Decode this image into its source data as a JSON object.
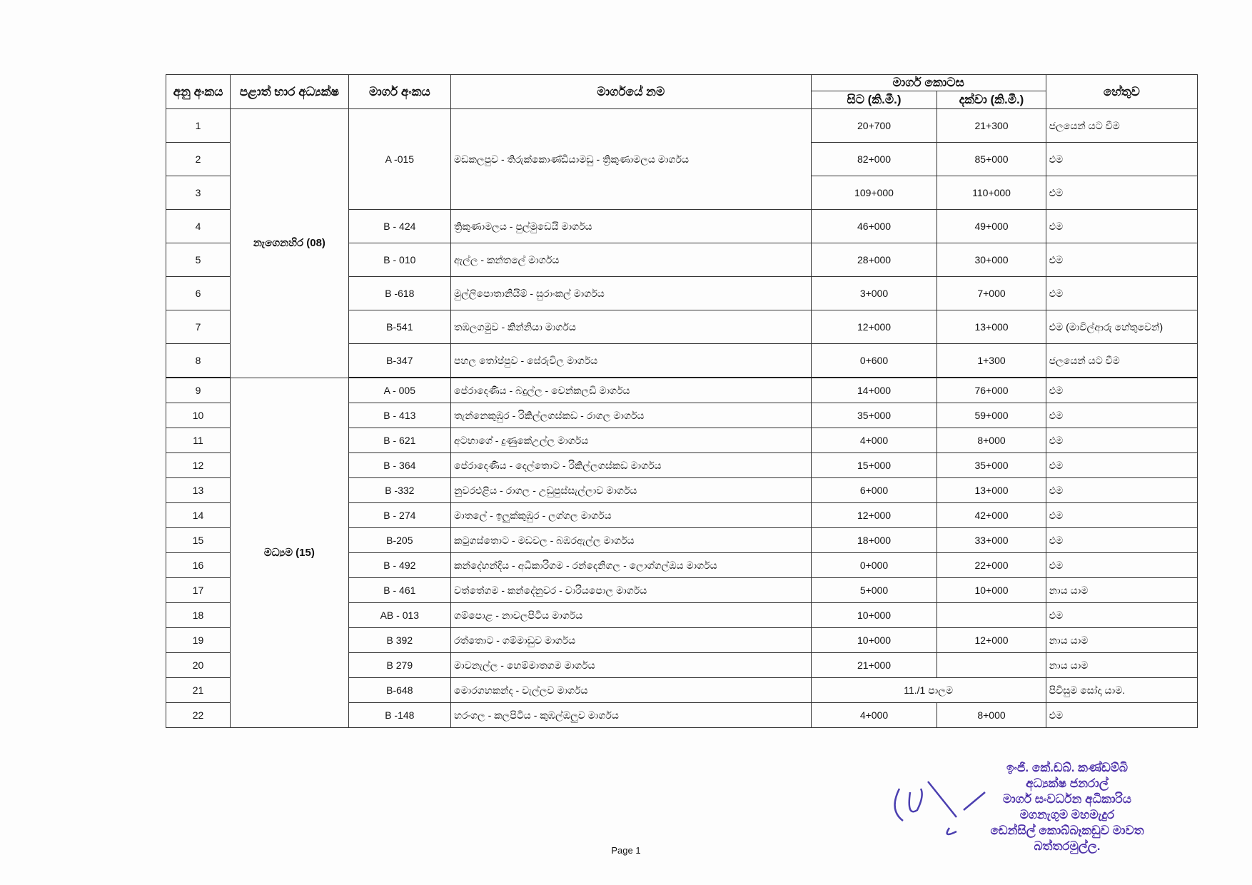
{
  "header": {
    "serial": "අනු අංකය",
    "office": "පළාත් භාර අධ්‍යක්ෂ",
    "road_code": "මාර්ග අංකය",
    "road_name": "මාර්ගයේ නම",
    "section": "මාර්ග කොටස",
    "from": "සිට (කි.මී.)",
    "to": "දක්වා (කි.මී.)",
    "reason": "හේතුව"
  },
  "offices": [
    "නැගෙනහිර (08)",
    "මධ්‍යම (15)"
  ],
  "rows": [
    {
      "no": "1",
      "code": "A -015",
      "name": "මඩකලපුව - තිරුක්කොණ්ඩියාමඩු - ත්‍රිකුණාමලය මාර්ගය",
      "from": "20+700",
      "to": "21+300",
      "reason": "ජලයෙන් යට වීම"
    },
    {
      "no": "2",
      "from": "82+000",
      "to": "85+000",
      "reason": "එම"
    },
    {
      "no": "3",
      "from": "109+000",
      "to": "110+000",
      "reason": "එම"
    },
    {
      "no": "4",
      "code": "B - 424",
      "name": "ත්‍රිකුණාමලය - පුල්මුඩෙයි මාර්ගය",
      "from": "46+000",
      "to": "49+000",
      "reason": "එම"
    },
    {
      "no": "5",
      "code": "B - 010",
      "name": "ඇල්ල - කන්තලේ මාර්ගය",
      "from": "28+000",
      "to": "30+000",
      "reason": "එම"
    },
    {
      "no": "6",
      "code": "B -618",
      "name": "මුල්ලිපොතානියිම් - සුරාංකල් මාර්ගය",
      "from": "3+000",
      "to": "7+000",
      "reason": "එම"
    },
    {
      "no": "7",
      "code": "B-541",
      "name": "තඹලගමුව - කින්නියා මාර්ගය",
      "from": "12+000",
      "to": "13+000",
      "reason": "එම (මාවිල්ආරු හේතුවෙන්)"
    },
    {
      "no": "8",
      "code": "B-347",
      "name": "පහල තෝප්පුව - සේරුවිල මාර්ගය",
      "from": "0+600",
      "to": "1+300",
      "reason": "ජලයෙන් යට වීම"
    },
    {
      "no": "9",
      "code": "A - 005",
      "name": "පේරාදෙණිය - බදුල්ල - චෙන්කලඩි මාර්ගය",
      "from": "14+000",
      "to": "76+000",
      "reason": "එම"
    },
    {
      "no": "10",
      "code": "B - 413",
      "name": "තැන්නෙකුඹුර - රිකිල්ලගස්කඩ - රාගල මාර්ගය",
      "from": "35+000",
      "to": "59+000",
      "reason": "එම"
    },
    {
      "no": "11",
      "code": "B - 621",
      "name": "අටභාගේ - දුණුකේඋල්ල මාර්ගය",
      "from": "4+000",
      "to": "8+000",
      "reason": "එම"
    },
    {
      "no": "12",
      "code": "B - 364",
      "name": "පේරාදෙණිය - දෙල්තොට - රිකිල්ලගස්කඩ මාර්ගය",
      "from": "15+000",
      "to": "35+000",
      "reason": "එම"
    },
    {
      "no": "13",
      "code": "B -332",
      "name": "නුවරඑළිය - රාගල - උඩුපුස්සැල්ලාව මාර්ගය",
      "from": "6+000",
      "to": "13+000",
      "reason": "එම"
    },
    {
      "no": "14",
      "code": "B - 274",
      "name": "මාතලේ - ඉලුක්කුඹුර - ලග්ගල මාර්ගය",
      "from": "12+000",
      "to": "42+000",
      "reason": "එම"
    },
    {
      "no": "15",
      "code": "B-205",
      "name": "කටුගස්තොට - මඩවල - බඹරඇල්ල මාර්ගය",
      "from": "18+000",
      "to": "33+000",
      "reason": "එම"
    },
    {
      "no": "16",
      "code": "B - 492",
      "name": "කන්දේහන්දිය - අධිකාරිගම - රන්දෙනිගල - ලොග්ගල්ඔය මාර්ගය",
      "from": "0+000",
      "to": "22+000",
      "reason": "එම"
    },
    {
      "no": "17",
      "code": "B - 461",
      "name": "වත්තේගම - කන්දේනුවර - වාරියපොල මාර්ගය",
      "from": "5+000",
      "to": "10+000",
      "reason": "නාය යාම"
    },
    {
      "no": "18",
      "code": "AB - 013",
      "name": "ගම්පොළ - නාවලපිටිය මාර්ගය",
      "from": "10+000",
      "to": "",
      "reason": "එම"
    },
    {
      "no": "19",
      "code": "B 392",
      "name": "රත්තොට - ගම්මාඩුව මාර්ගය",
      "from": "10+000",
      "to": "12+000",
      "reason": "නාය යාම"
    },
    {
      "no": "20",
      "code": "B 279",
      "name": "මාවනැල්ල - හෙම්මාතගම මාර්ගය",
      "from": "21+000",
      "to": "",
      "reason": "නාය යාම"
    },
    {
      "no": "21",
      "code": "B-648",
      "name": "මොරගහකන්ද - වැල්ලව මාර්ගය",
      "section": "11./1 පාලම",
      "reason": "පිවිසුම සෝදා යාම."
    },
    {
      "no": "22",
      "code": "B -148",
      "name": "හරංගල - කලපිටිය - කුඹල්ඔලුව මාර්ගය",
      "from": "4+000",
      "to": "8+000",
      "reason": "එම"
    }
  ],
  "signature": {
    "initials": "01/12/2",
    "lines": [
      "ඉංජි. කේ.ඩබ්. කණ්ඩම්බි",
      "අධ්‍යක්ෂ ජනරාල්",
      "මාර්ග සංවර්ධන අධිකාරිය",
      "මගනැගුම මහමැදුර",
      "ඩෙන්සිල් කොබ්බෑකඩුව මාවත",
      "බත්තරමුල්ල."
    ]
  },
  "footer": {
    "page": "Page 1"
  }
}
